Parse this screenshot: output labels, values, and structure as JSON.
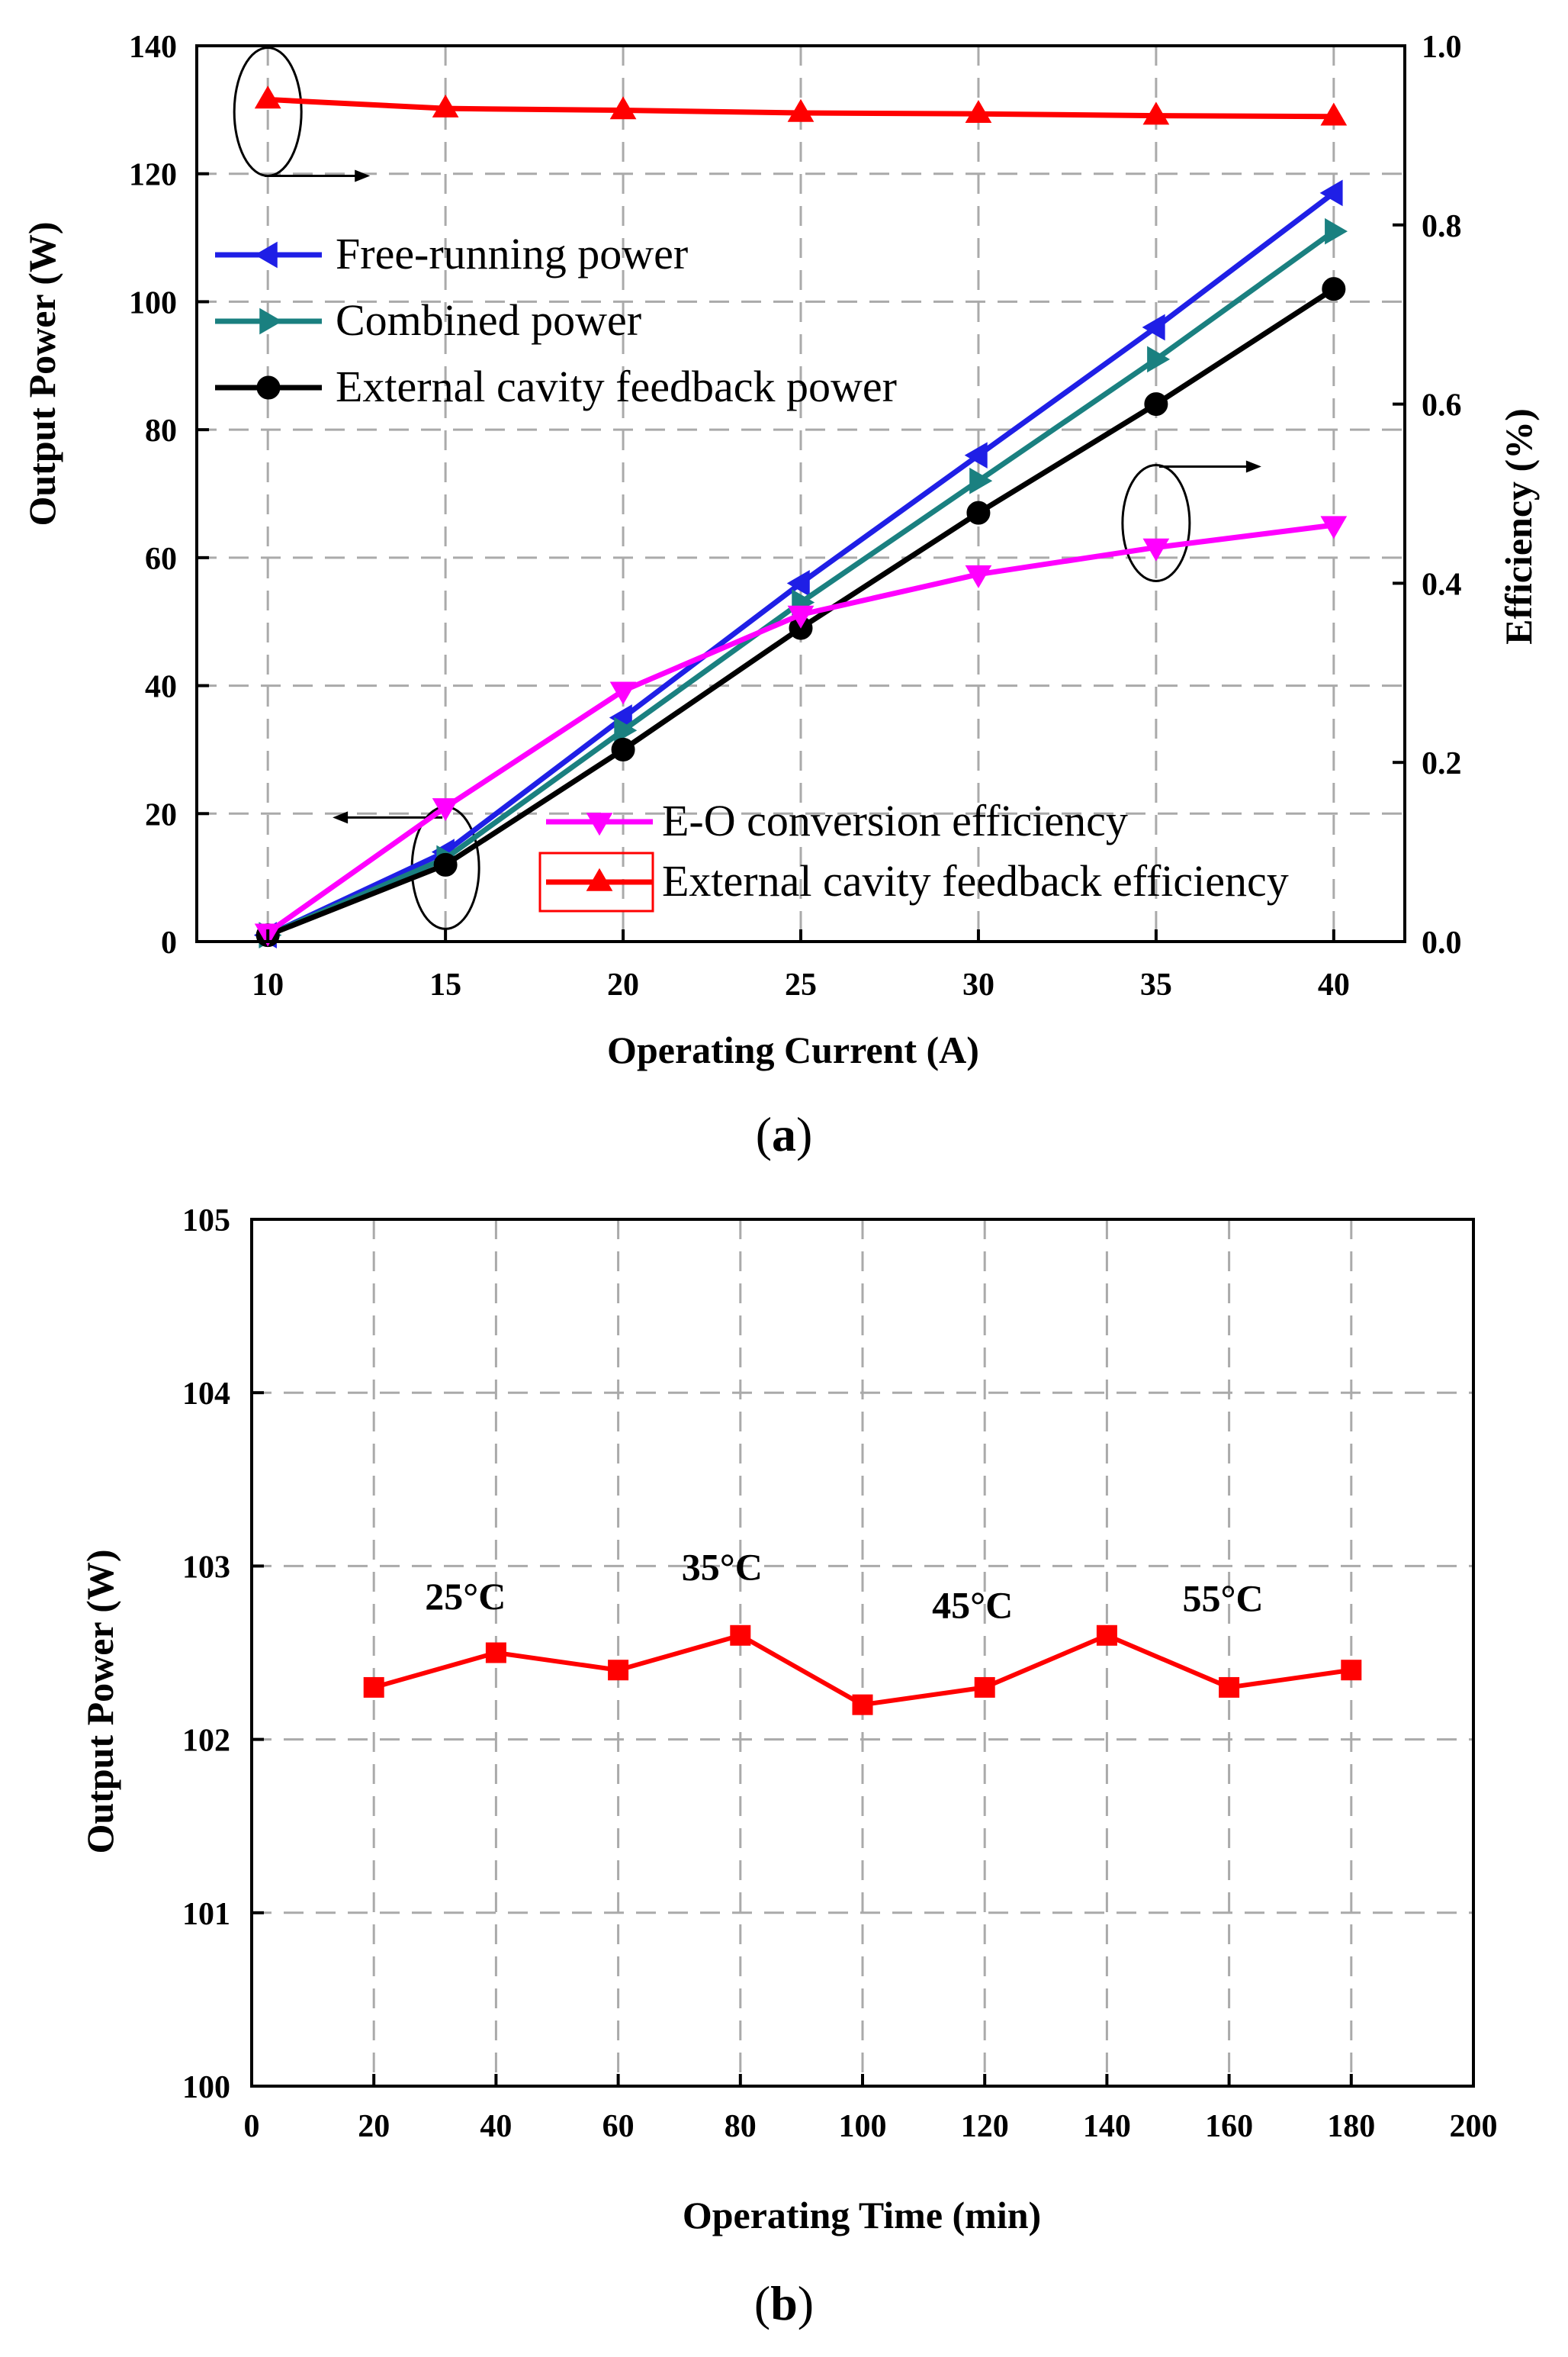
{
  "chart_data": [
    {
      "id": "a",
      "panel_label": "a",
      "type": "line",
      "xlabel": "Operating Current (A)",
      "ylabel": "Output Power (W)",
      "ylabel_right": "Efficiency (%)",
      "xlim": [
        8,
        42
      ],
      "ylim": [
        0,
        140
      ],
      "ylim_right": [
        0,
        1.0
      ],
      "xticks": [
        10,
        15,
        20,
        25,
        30,
        35,
        40
      ],
      "yticks": [
        0,
        20,
        40,
        60,
        80,
        100,
        120,
        140
      ],
      "yticks_right": [
        "0.0",
        "0.2",
        "0.4",
        "0.6",
        "0.8",
        "1.0"
      ],
      "grid": true,
      "x": [
        10,
        15,
        20,
        25,
        30,
        35,
        40
      ],
      "series": [
        {
          "name": "Free-running power",
          "axis": "left",
          "color": "#1f1fe6",
          "marker": "triangle-left",
          "values": [
            1,
            14,
            35,
            56,
            76,
            96,
            117
          ]
        },
        {
          "name": "Combined power",
          "axis": "left",
          "color": "#1a8080",
          "marker": "triangle-right",
          "values": [
            1,
            13,
            33,
            53,
            72,
            91,
            111
          ]
        },
        {
          "name": "External cavity feedback power",
          "axis": "left",
          "color": "#000000",
          "marker": "circle",
          "values": [
            1,
            12,
            30,
            49,
            67,
            84,
            102
          ]
        },
        {
          "name": "E-O conversion efficiency",
          "axis": "right",
          "color": "#ff00ff",
          "marker": "triangle-down",
          "values": [
            0.01,
            0.15,
            0.28,
            0.365,
            0.41,
            0.44,
            0.465
          ]
        },
        {
          "name": "External cavity feedback efficiency",
          "axis": "right",
          "color": "#ff0000",
          "marker": "triangle-up",
          "values": [
            0.94,
            0.93,
            0.928,
            0.925,
            0.924,
            0.922,
            0.921
          ]
        }
      ],
      "legend_left_series": [
        "Free-running power",
        "Combined power",
        "External cavity feedback power"
      ],
      "legend_right_series": [
        "E-O conversion efficiency",
        "External cavity feedback efficiency"
      ]
    },
    {
      "id": "b",
      "panel_label": "b",
      "type": "line",
      "xlabel": "Operating Time (min)",
      "ylabel": "Output Power (W)",
      "xlim": [
        0,
        200
      ],
      "ylim": [
        100,
        105
      ],
      "xticks": [
        0,
        20,
        40,
        60,
        80,
        100,
        120,
        140,
        160,
        180,
        200
      ],
      "yticks": [
        100,
        101,
        102,
        103,
        104,
        105
      ],
      "grid": true,
      "series": [
        {
          "name": "Output power",
          "color": "#ff0000",
          "marker": "square",
          "x": [
            20,
            40,
            60,
            80,
            100,
            120,
            140,
            160,
            180
          ],
          "values": [
            102.3,
            102.5,
            102.4,
            102.6,
            102.2,
            102.3,
            102.6,
            102.3,
            102.4
          ]
        }
      ],
      "annotations": [
        {
          "text": "25°C",
          "x": 35,
          "y": 102.75
        },
        {
          "text": "35°C",
          "x": 77,
          "y": 102.92
        },
        {
          "text": "45°C",
          "x": 118,
          "y": 102.7
        },
        {
          "text": "55°C",
          "x": 159,
          "y": 102.74
        }
      ]
    }
  ]
}
